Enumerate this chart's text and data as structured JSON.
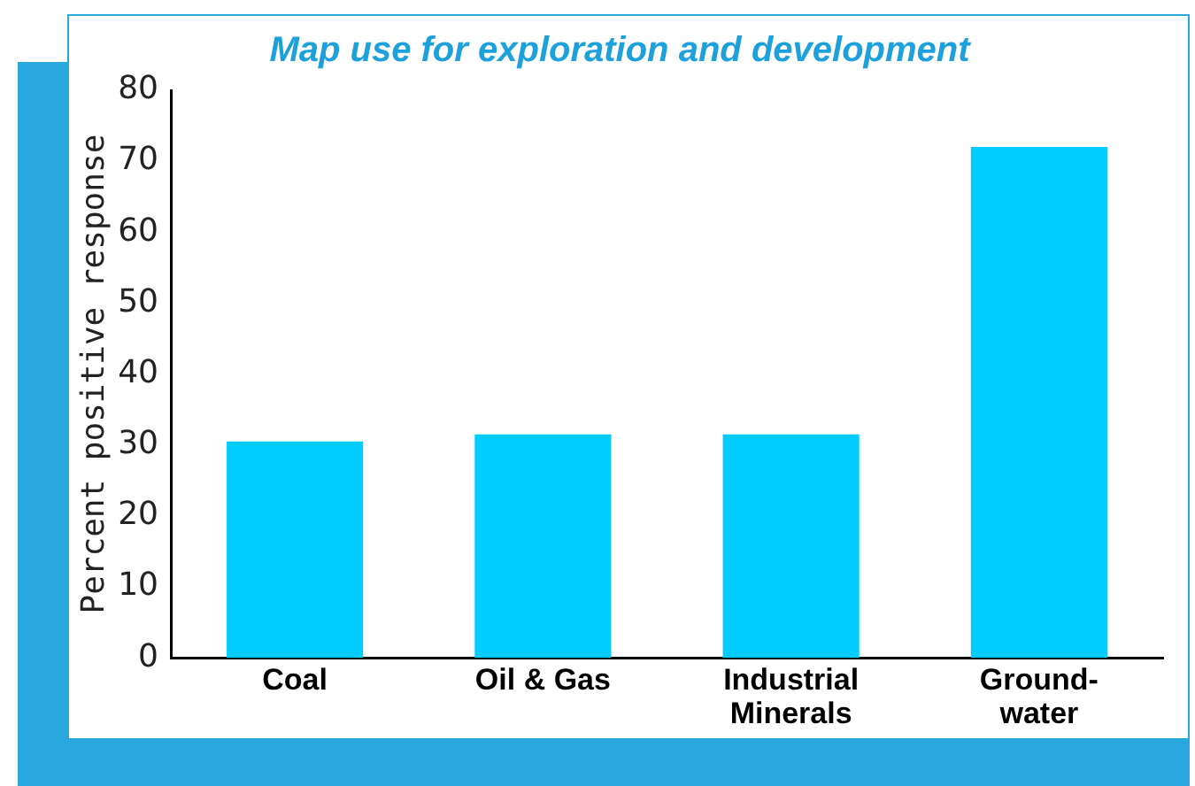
{
  "chart_data": {
    "type": "bar",
    "title": "Map use for exploration and development",
    "ylabel": "Percent positive response",
    "categories": [
      "Coal",
      "Oil & Gas",
      "Industrial Minerals",
      "Ground-water"
    ],
    "values": [
      30.5,
      31.5,
      31.5,
      72
    ],
    "color": "#00ccff",
    "ylim": [
      0,
      80
    ],
    "yticks": [
      0,
      10,
      20,
      30,
      40,
      50,
      60,
      70,
      80
    ],
    "grid": false,
    "legend": false
  }
}
